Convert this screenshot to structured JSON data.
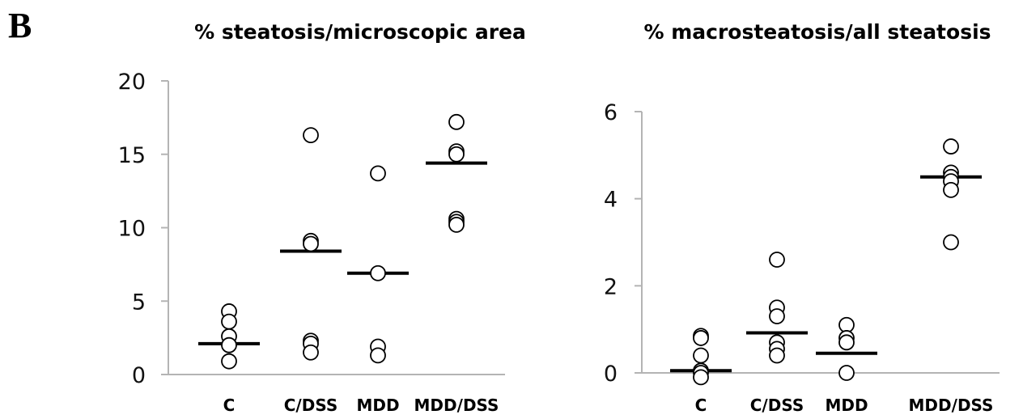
{
  "panel_label": "B",
  "chart_data": [
    {
      "type": "scatter",
      "title": "%  steatosis/microscopic area",
      "xlabel": "",
      "ylabel": "",
      "categories": [
        "C",
        "C/DSS",
        "MDD",
        "MDD/DSS"
      ],
      "ylim": [
        0,
        20
      ],
      "yticks": [
        0,
        5,
        10,
        15,
        20
      ],
      "ytick_labels": [
        "0",
        "5",
        "10",
        "15",
        "20"
      ],
      "grid": false,
      "points": [
        [
          4.3,
          3.6,
          2.6,
          2.0,
          0.9
        ],
        [
          16.3,
          9.1,
          8.9,
          2.3,
          2.1,
          1.5
        ],
        [
          13.7,
          6.9,
          1.9,
          1.3
        ],
        [
          17.2,
          15.2,
          15.0,
          10.6,
          10.4,
          10.2
        ]
      ],
      "means": [
        2.1,
        8.4,
        6.9,
        14.4
      ]
    },
    {
      "type": "scatter",
      "title": "% macrosteatosis/all steatosis",
      "xlabel": "",
      "ylabel": "",
      "categories": [
        "C",
        "C/DSS",
        "MDD",
        "MDD/DSS"
      ],
      "ylim": [
        0,
        6
      ],
      "yticks": [
        0,
        2,
        4,
        6
      ],
      "ytick_labels": [
        "0",
        "2",
        "4",
        "6"
      ],
      "grid": false,
      "points": [
        [
          0.85,
          0.8,
          0.4,
          0.05,
          0.0,
          -0.1
        ],
        [
          2.6,
          1.5,
          1.3,
          0.7,
          0.55,
          0.4
        ],
        [
          1.1,
          0.8,
          0.7,
          0.0
        ],
        [
          5.2,
          4.6,
          4.5,
          4.4,
          4.2,
          3.0
        ]
      ],
      "means": [
        0.05,
        0.92,
        0.45,
        4.5
      ]
    }
  ]
}
